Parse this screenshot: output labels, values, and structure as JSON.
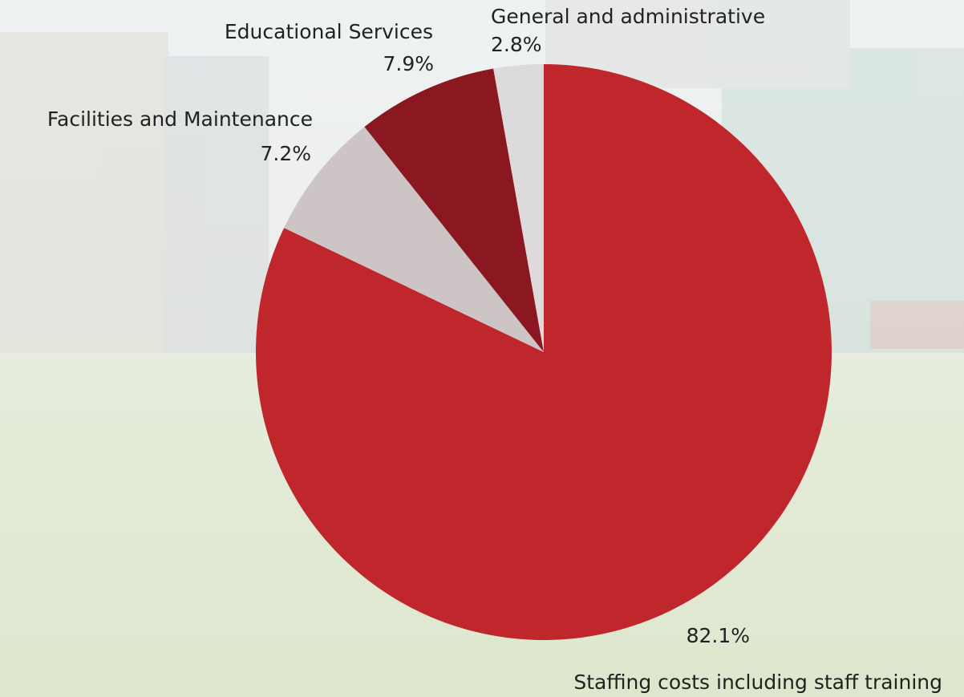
{
  "chart_data": {
    "type": "pie",
    "categories": [
      "Staffing costs including staff training",
      "Facilities and Maintenance",
      "Educational Services",
      "General and administrative"
    ],
    "values": [
      82.1,
      7.2,
      7.9,
      2.8
    ],
    "value_labels": [
      "82.1%",
      "7.2%",
      "7.9%",
      "2.8%"
    ],
    "colors": [
      "#c0272d",
      "#cdc5c5",
      "#8b1821",
      "#dcdada"
    ],
    "start_angle": 90,
    "direction": "clockwise"
  }
}
